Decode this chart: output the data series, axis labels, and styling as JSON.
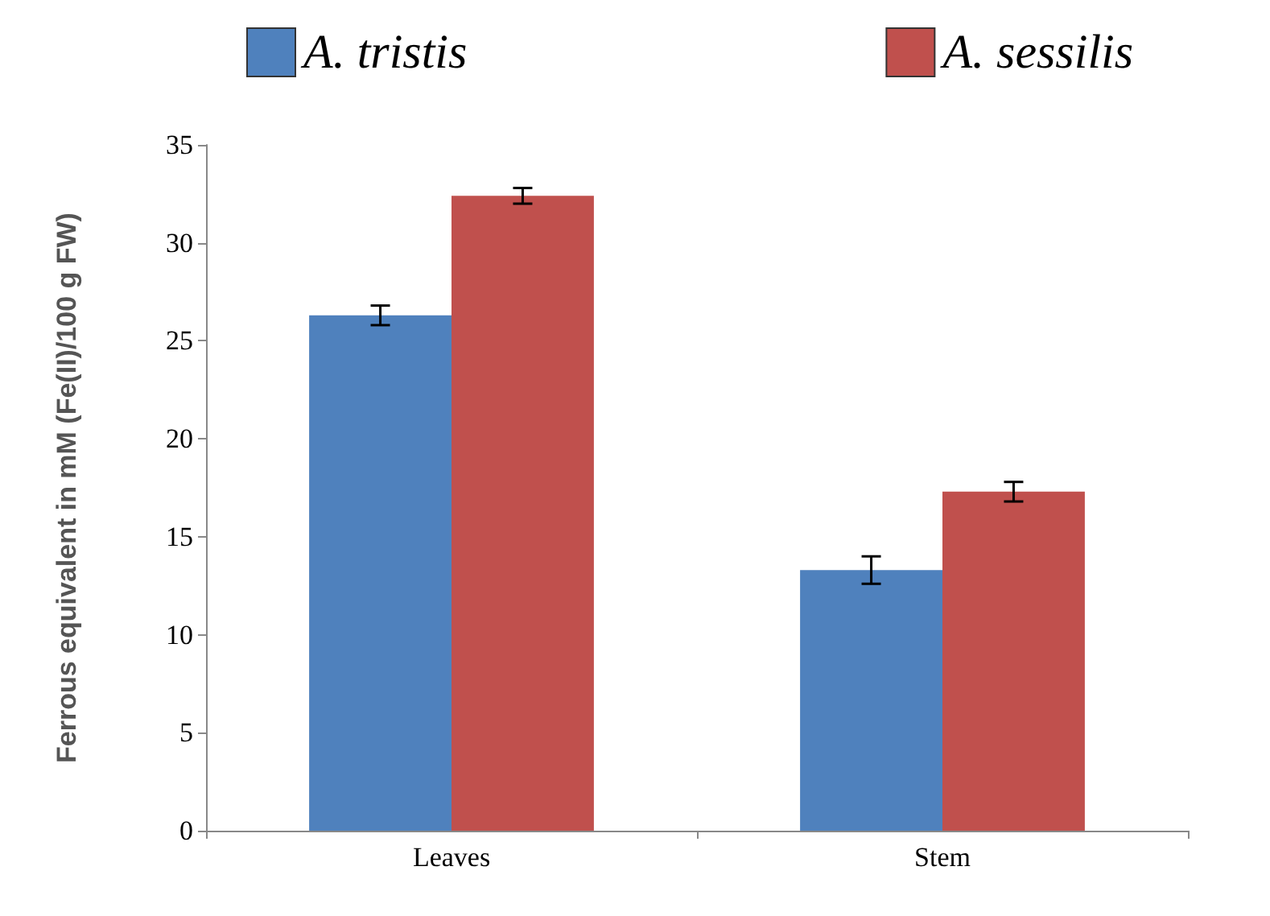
{
  "chart_data": {
    "type": "bar",
    "ylabel": "Ferrous equivalent in mM (Fe(II)/100 g FW)",
    "categories": [
      "Leaves",
      "Stem"
    ],
    "series": [
      {
        "name": "A. tristis",
        "color": "#4f81bd",
        "values": [
          26.3,
          13.3
        ],
        "errors": [
          0.5,
          0.7
        ]
      },
      {
        "name": "A. sessilis",
        "color": "#c0504d",
        "values": [
          32.4,
          17.3
        ],
        "errors": [
          0.4,
          0.5
        ]
      }
    ],
    "ylim": [
      0,
      35
    ],
    "yticks": [
      0,
      5,
      10,
      15,
      20,
      25,
      30,
      35
    ],
    "grid": false,
    "legend": "top"
  }
}
